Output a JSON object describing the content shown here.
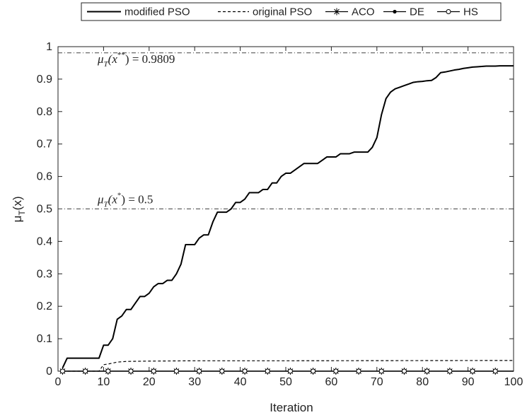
{
  "chart_data": {
    "type": "line",
    "xlabel": "Iteration",
    "ylabel_main": "μ",
    "ylabel_sub": "T",
    "ylabel_rest": "(x)",
    "xlim": [
      0,
      100
    ],
    "ylim": [
      0,
      1
    ],
    "x_ticks": [
      "0",
      "10",
      "20",
      "30",
      "40",
      "50",
      "60",
      "70",
      "80",
      "90",
      "100"
    ],
    "y_ticks": [
      "0",
      "0.1",
      "0.2",
      "0.3",
      "0.4",
      "0.5",
      "0.6",
      "0.7",
      "0.8",
      "0.9",
      "1"
    ],
    "grid": false,
    "legend_position": "top-outside",
    "series": [
      {
        "name": "modified PSO",
        "style": "solid",
        "color": "#000000",
        "points": [
          [
            1,
            0.01
          ],
          [
            2,
            0.04
          ],
          [
            3,
            0.04
          ],
          [
            4,
            0.04
          ],
          [
            5,
            0.04
          ],
          [
            6,
            0.04
          ],
          [
            7,
            0.04
          ],
          [
            8,
            0.04
          ],
          [
            9,
            0.04
          ],
          [
            10,
            0.08
          ],
          [
            11,
            0.08
          ],
          [
            12,
            0.1
          ],
          [
            13,
            0.16
          ],
          [
            14,
            0.17
          ],
          [
            15,
            0.19
          ],
          [
            16,
            0.19
          ],
          [
            17,
            0.21
          ],
          [
            18,
            0.23
          ],
          [
            19,
            0.23
          ],
          [
            20,
            0.24
          ],
          [
            21,
            0.26
          ],
          [
            22,
            0.27
          ],
          [
            23,
            0.27
          ],
          [
            24,
            0.28
          ],
          [
            25,
            0.28
          ],
          [
            26,
            0.3
          ],
          [
            27,
            0.33
          ],
          [
            28,
            0.39
          ],
          [
            29,
            0.39
          ],
          [
            30,
            0.39
          ],
          [
            31,
            0.41
          ],
          [
            32,
            0.42
          ],
          [
            33,
            0.42
          ],
          [
            34,
            0.46
          ],
          [
            35,
            0.49
          ],
          [
            36,
            0.49
          ],
          [
            37,
            0.49
          ],
          [
            38,
            0.5
          ],
          [
            39,
            0.52
          ],
          [
            40,
            0.52
          ],
          [
            41,
            0.53
          ],
          [
            42,
            0.55
          ],
          [
            43,
            0.55
          ],
          [
            44,
            0.55
          ],
          [
            45,
            0.56
          ],
          [
            46,
            0.56
          ],
          [
            47,
            0.58
          ],
          [
            48,
            0.58
          ],
          [
            49,
            0.6
          ],
          [
            50,
            0.61
          ],
          [
            51,
            0.61
          ],
          [
            52,
            0.62
          ],
          [
            53,
            0.63
          ],
          [
            54,
            0.64
          ],
          [
            55,
            0.64
          ],
          [
            56,
            0.64
          ],
          [
            57,
            0.64
          ],
          [
            58,
            0.65
          ],
          [
            59,
            0.66
          ],
          [
            60,
            0.66
          ],
          [
            61,
            0.66
          ],
          [
            62,
            0.67
          ],
          [
            63,
            0.67
          ],
          [
            64,
            0.67
          ],
          [
            65,
            0.675
          ],
          [
            66,
            0.675
          ],
          [
            67,
            0.675
          ],
          [
            68,
            0.675
          ],
          [
            69,
            0.69
          ],
          [
            70,
            0.72
          ],
          [
            71,
            0.79
          ],
          [
            72,
            0.84
          ],
          [
            73,
            0.86
          ],
          [
            74,
            0.87
          ],
          [
            75,
            0.875
          ],
          [
            76,
            0.88
          ],
          [
            77,
            0.885
          ],
          [
            78,
            0.89
          ],
          [
            79,
            0.892
          ],
          [
            80,
            0.893
          ],
          [
            81,
            0.895
          ],
          [
            82,
            0.896
          ],
          [
            83,
            0.905
          ],
          [
            84,
            0.92
          ],
          [
            85,
            0.922
          ],
          [
            86,
            0.925
          ],
          [
            87,
            0.928
          ],
          [
            88,
            0.93
          ],
          [
            89,
            0.933
          ],
          [
            90,
            0.935
          ],
          [
            91,
            0.937
          ],
          [
            92,
            0.938
          ],
          [
            93,
            0.939
          ],
          [
            94,
            0.94
          ],
          [
            95,
            0.94
          ],
          [
            96,
            0.94
          ],
          [
            97,
            0.941
          ],
          [
            98,
            0.941
          ],
          [
            99,
            0.941
          ],
          [
            100,
            0.941
          ]
        ]
      },
      {
        "name": "original PSO",
        "style": "dashed",
        "color": "#000000",
        "points": [
          [
            1,
            0.0
          ],
          [
            9,
            0.0
          ],
          [
            10,
            0.02
          ],
          [
            11,
            0.022
          ],
          [
            12,
            0.025
          ],
          [
            13,
            0.028
          ],
          [
            15,
            0.03
          ],
          [
            20,
            0.031
          ],
          [
            30,
            0.032
          ],
          [
            50,
            0.032
          ],
          [
            100,
            0.033
          ]
        ]
      },
      {
        "name": "ACO",
        "style": "solid",
        "marker": "asterisk",
        "color": "#000000",
        "points": [
          [
            1,
            0
          ],
          [
            100,
            0
          ]
        ],
        "marker_x": [
          1,
          6,
          11,
          16,
          21,
          26,
          31,
          36,
          41,
          46,
          51,
          56,
          61,
          66,
          71,
          76,
          81,
          86,
          91,
          96
        ]
      },
      {
        "name": "DE",
        "style": "solid",
        "marker": "dot",
        "color": "#000000",
        "points": [
          [
            1,
            0
          ],
          [
            100,
            0
          ]
        ],
        "marker_x": [
          1,
          6,
          11,
          16,
          21,
          26,
          31,
          36,
          41,
          46,
          51,
          56,
          61,
          66,
          71,
          76,
          81,
          86,
          91,
          96
        ]
      },
      {
        "name": "HS",
        "style": "solid",
        "marker": "circle",
        "color": "#000000",
        "points": [
          [
            1,
            0
          ],
          [
            100,
            0
          ]
        ],
        "marker_x": [
          1,
          6,
          11,
          16,
          21,
          26,
          31,
          36,
          41,
          46,
          51,
          56,
          61,
          66,
          71,
          76,
          81,
          86,
          91,
          96
        ]
      }
    ],
    "reference_lines": [
      {
        "y": 0.9809,
        "style": "dash-dot",
        "label_lhs": "μ",
        "label_sub": "T",
        "label_arg": "(x",
        "label_sup": "**",
        "label_close": ")",
        "label_rhs": " = 0.9809"
      },
      {
        "y": 0.5,
        "style": "dash-dot",
        "label_lhs": "μ",
        "label_sub": "T",
        "label_arg": "(x",
        "label_sup": "*",
        "label_close": ")",
        "label_rhs": " = 0.5"
      }
    ]
  }
}
